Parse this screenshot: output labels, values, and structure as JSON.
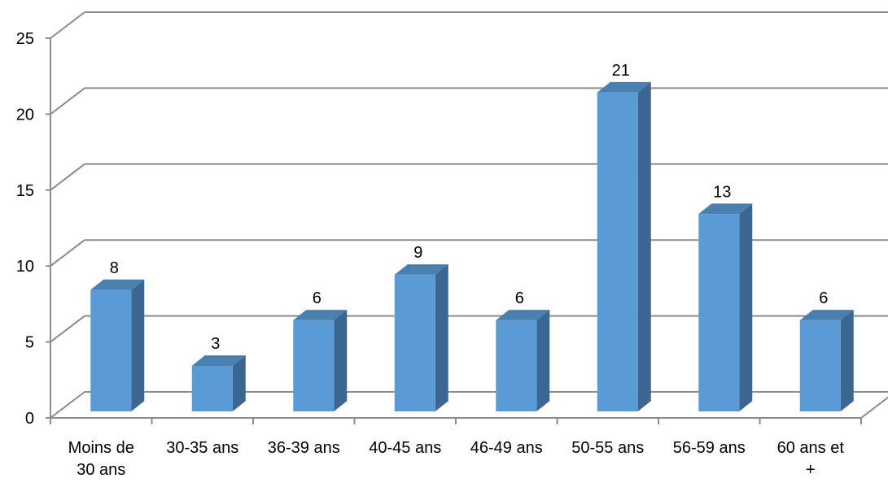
{
  "chart_data": {
    "type": "bar",
    "title": "",
    "xlabel": "",
    "ylabel": "",
    "categories": [
      [
        "Moins de",
        "30 ans"
      ],
      [
        "30-35 ans"
      ],
      [
        "36-39 ans"
      ],
      [
        "40-45 ans"
      ],
      [
        "46-49 ans"
      ],
      [
        "50-55 ans"
      ],
      [
        "56-59 ans"
      ],
      [
        "60 ans et",
        "+"
      ]
    ],
    "values": [
      8,
      3,
      6,
      9,
      6,
      21,
      13,
      6
    ],
    "data_labels": [
      "8",
      "3",
      "6",
      "9",
      "6",
      "21",
      "13",
      "6"
    ],
    "ylim": [
      0,
      25
    ],
    "yticks": [
      0,
      5,
      10,
      15,
      20,
      25
    ],
    "grid": true,
    "legend": "none",
    "style": "3d-column",
    "colors": {
      "bar_front": "#5b9bd5",
      "bar_side": "#3b6690",
      "bar_top": "#4a7fb0",
      "grid": "#8c8c8c",
      "axis": "#8c8c8c"
    }
  }
}
